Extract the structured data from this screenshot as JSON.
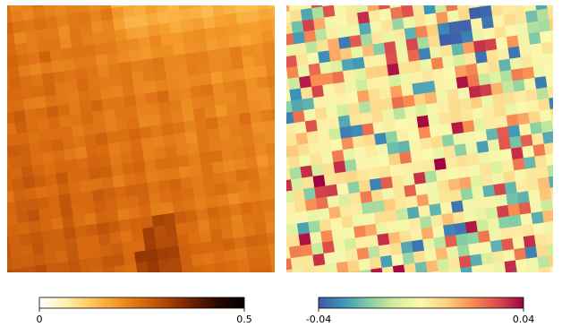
{
  "chart_data": [
    {
      "type": "heatmap",
      "title": "",
      "colormap": "afmhot_r",
      "colorbar": {
        "orientation": "horizontal",
        "min": 0,
        "max": 0.5,
        "ticks": [
          0,
          0.5
        ],
        "tick_labels": [
          "0",
          "0.5"
        ],
        "stops": [
          "#ffffff",
          "#fff1b3",
          "#ffc860",
          "#f49a2a",
          "#d96a10",
          "#a84306",
          "#6a1e02",
          "#2a0700",
          "#000000"
        ]
      },
      "grid_size": [
        24,
        24
      ],
      "value_range_shown": [
        0.15,
        0.3
      ],
      "pattern": "near-uniform orange field with a diagonal striped texture, brighter (lower) values toward the top-right edge, darker (higher) region toward the lower-left and a dark spike near the bottom center"
    },
    {
      "type": "heatmap",
      "title": "",
      "colormap": "Spectral_r",
      "colorbar": {
        "orientation": "horizontal",
        "min": -0.04,
        "max": 0.04,
        "ticks": [
          -0.04,
          0.04
        ],
        "tick_labels": [
          "-0.04",
          "0.04"
        ],
        "stops": [
          "#3f5aa8",
          "#3d96b8",
          "#87cfa4",
          "#d6ee9b",
          "#fbf8b0",
          "#fdd180",
          "#f88d52",
          "#dc4c4c",
          "#9e0142"
        ]
      },
      "grid_size": [
        24,
        24
      ],
      "value_range_shown": [
        -0.04,
        0.04
      ],
      "pattern": "checkered residual field of small tilted blocks, mostly near zero (light yellow/green) with scattered red positive and blue negative blocks; cluster of blue blocks near the top-right"
    }
  ]
}
